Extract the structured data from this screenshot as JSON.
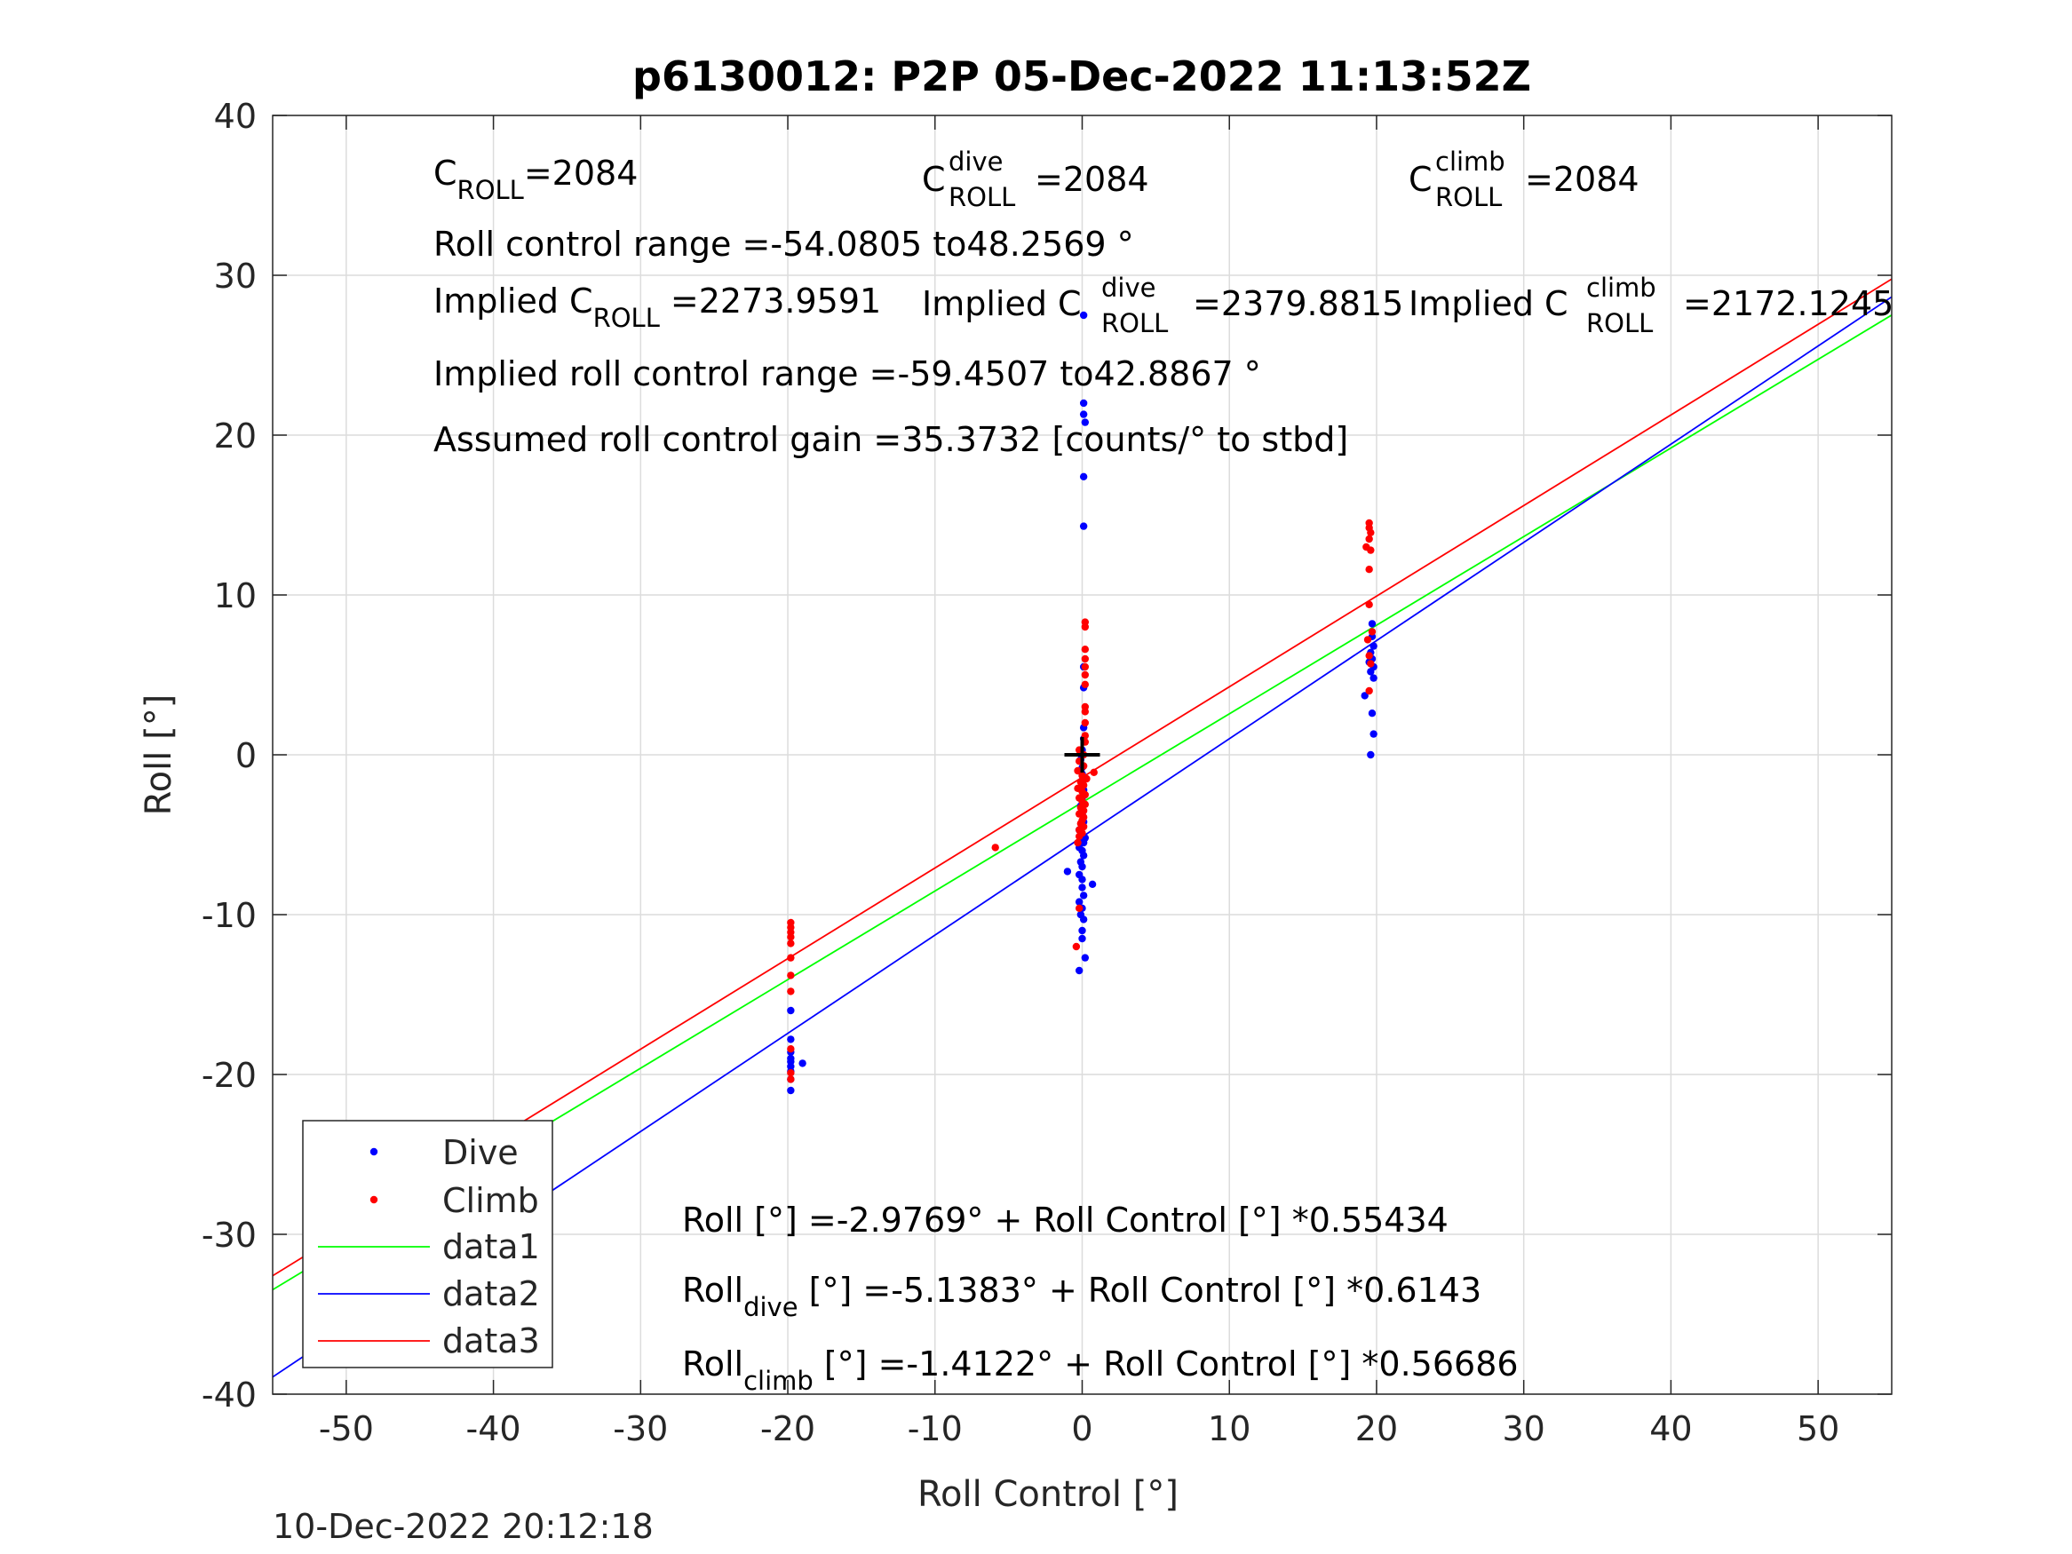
{
  "chart_data": {
    "type": "scatter",
    "title": "p6130012: P2P 05-Dec-2022 11:13:52Z",
    "xlabel": "Roll Control [°]",
    "ylabel": "Roll [°]",
    "xlim": [
      -55,
      55
    ],
    "ylim": [
      -40,
      40
    ],
    "xticks": [
      -50,
      -40,
      -30,
      -20,
      -10,
      0,
      10,
      20,
      30,
      40,
      50
    ],
    "yticks": [
      -40,
      -30,
      -20,
      -10,
      0,
      10,
      20,
      30,
      40
    ],
    "grid": true,
    "legend_position": "bottom-left",
    "timestamp": "10-Dec-2022 20:12:18",
    "annotations": {
      "c_roll": {
        "main": "C",
        "sub": "ROLL",
        "value": "=2084"
      },
      "c_roll_dive": {
        "main": "C",
        "sup": "dive",
        "sub": "ROLL",
        "value": "=2084"
      },
      "c_roll_climb": {
        "main": "C",
        "sup": "climb",
        "sub": "ROLL",
        "value": "=2084"
      },
      "range": "Roll control range =-54.0805 to48.2569 °",
      "implied": {
        "prefix": "Implied C",
        "sub": "ROLL",
        "value": "=2273.9591"
      },
      "implied_dive": {
        "prefix": "Implied C",
        "sup": "dive",
        "sub": "ROLL",
        "value": "=2379.8815"
      },
      "implied_climb": {
        "prefix": "Implied C",
        "sup": "climb",
        "sub": "ROLL",
        "value": "=2172.1245"
      },
      "implied_range": "Implied roll control range =-59.4507 to42.8867 °",
      "gain": "Assumed roll control gain =35.3732 [counts/° to stbd]",
      "fit_all": "Roll [°] =-2.9769° + Roll Control [°] *0.55434",
      "fit_dive": {
        "main": "Roll",
        "sub": "dive",
        "rest": " [°] =-5.1383° + Roll Control [°] *0.6143"
      },
      "fit_climb": {
        "main": "Roll",
        "sub": "climb",
        "rest": " [°] =-1.4122° + Roll Control [°] *0.56686"
      }
    },
    "series": [
      {
        "name": "Dive",
        "kind": "points",
        "color": "#0000ff",
        "points": [
          [
            -19.8,
            -21.0
          ],
          [
            -19.8,
            -20.3
          ],
          [
            -19.8,
            -19.8
          ],
          [
            -19.8,
            -19.5
          ],
          [
            -19.8,
            -19.2
          ],
          [
            -19.8,
            -19.0
          ],
          [
            -19.8,
            -18.6
          ],
          [
            -19.8,
            -17.8
          ],
          [
            -19.8,
            -16.0
          ],
          [
            -19.0,
            -19.3
          ],
          [
            0.1,
            27.5
          ],
          [
            0.1,
            22.0
          ],
          [
            0.1,
            21.3
          ],
          [
            0.2,
            20.8
          ],
          [
            0.1,
            17.4
          ],
          [
            0.1,
            14.3
          ],
          [
            0.1,
            5.5
          ],
          [
            0.1,
            4.2
          ],
          [
            0.1,
            1.7
          ],
          [
            0.1,
            1.0
          ],
          [
            0.0,
            0.3
          ],
          [
            -0.1,
            -0.3
          ],
          [
            0.0,
            -0.8
          ],
          [
            0.0,
            -1.2
          ],
          [
            0.0,
            -1.6
          ],
          [
            0.1,
            -2.2
          ],
          [
            0.0,
            -2.7
          ],
          [
            -0.1,
            -3.2
          ],
          [
            0.0,
            -3.7
          ],
          [
            0.1,
            -4.2
          ],
          [
            -0.2,
            -4.7
          ],
          [
            0.0,
            -5.2
          ],
          [
            0.1,
            -5.5
          ],
          [
            -0.2,
            -5.8
          ],
          [
            0.0,
            -6.0
          ],
          [
            0.1,
            -6.3
          ],
          [
            -0.1,
            -6.7
          ],
          [
            0.0,
            -7.0
          ],
          [
            -0.2,
            -7.5
          ],
          [
            0.0,
            -7.8
          ],
          [
            -1.0,
            -7.3
          ],
          [
            0.0,
            -8.3
          ],
          [
            0.1,
            -8.8
          ],
          [
            -0.2,
            -9.2
          ],
          [
            0.0,
            -9.6
          ],
          [
            -0.1,
            -10.0
          ],
          [
            0.1,
            -10.3
          ],
          [
            0.0,
            -11.0
          ],
          [
            0.0,
            -11.5
          ],
          [
            0.2,
            -12.7
          ],
          [
            -0.2,
            -13.5
          ],
          [
            0.7,
            -8.1
          ],
          [
            0.2,
            -5.2
          ],
          [
            19.7,
            8.2
          ],
          [
            19.7,
            7.4
          ],
          [
            19.8,
            6.8
          ],
          [
            19.6,
            6.4
          ],
          [
            19.7,
            6.0
          ],
          [
            19.5,
            5.8
          ],
          [
            19.8,
            5.5
          ],
          [
            19.6,
            5.2
          ],
          [
            19.8,
            4.8
          ],
          [
            19.2,
            3.7
          ],
          [
            19.7,
            2.6
          ],
          [
            19.8,
            1.3
          ],
          [
            19.6,
            0.0
          ]
        ]
      },
      {
        "name": "Climb",
        "kind": "points",
        "color": "#ff0000",
        "points": [
          [
            -19.8,
            -10.5
          ],
          [
            -19.8,
            -10.8
          ],
          [
            -19.8,
            -11.1
          ],
          [
            -19.8,
            -11.4
          ],
          [
            -19.8,
            -11.8
          ],
          [
            -19.8,
            -12.7
          ],
          [
            -19.8,
            -13.8
          ],
          [
            -19.8,
            -14.8
          ],
          [
            -19.8,
            -18.4
          ],
          [
            -19.8,
            -19.9
          ],
          [
            -19.8,
            -20.3
          ],
          [
            -5.9,
            -5.8
          ],
          [
            0.2,
            8.3
          ],
          [
            0.2,
            8.0
          ],
          [
            0.2,
            6.6
          ],
          [
            0.2,
            6.0
          ],
          [
            0.2,
            5.5
          ],
          [
            0.2,
            5.0
          ],
          [
            0.2,
            4.4
          ],
          [
            0.2,
            3.0
          ],
          [
            0.2,
            2.7
          ],
          [
            0.2,
            2.0
          ],
          [
            0.2,
            1.2
          ],
          [
            0.2,
            0.8
          ],
          [
            -0.2,
            0.3
          ],
          [
            0.1,
            0.0
          ],
          [
            -0.2,
            -0.4
          ],
          [
            0.1,
            -0.7
          ],
          [
            -0.3,
            -1.0
          ],
          [
            0.0,
            -1.3
          ],
          [
            0.3,
            -1.5
          ],
          [
            -0.1,
            -1.7
          ],
          [
            0.1,
            -1.9
          ],
          [
            -0.3,
            -2.1
          ],
          [
            0.0,
            -2.3
          ],
          [
            0.2,
            -2.5
          ],
          [
            -0.2,
            -2.7
          ],
          [
            0.0,
            -2.9
          ],
          [
            0.2,
            -3.1
          ],
          [
            -0.1,
            -3.3
          ],
          [
            0.1,
            -3.5
          ],
          [
            -0.2,
            -3.7
          ],
          [
            0.1,
            -3.9
          ],
          [
            0.0,
            -4.1
          ],
          [
            -0.1,
            -4.3
          ],
          [
            0.1,
            -4.5
          ],
          [
            -0.2,
            -4.7
          ],
          [
            0.0,
            -4.9
          ],
          [
            -0.2,
            -5.1
          ],
          [
            -0.3,
            -5.5
          ],
          [
            0.8,
            -1.1
          ],
          [
            -0.2,
            -9.6
          ],
          [
            -0.4,
            -12.0
          ],
          [
            19.5,
            14.5
          ],
          [
            19.5,
            14.2
          ],
          [
            19.6,
            13.9
          ],
          [
            19.5,
            13.5
          ],
          [
            19.3,
            13.0
          ],
          [
            19.6,
            12.8
          ],
          [
            19.5,
            11.6
          ],
          [
            19.5,
            9.4
          ],
          [
            19.7,
            7.7
          ],
          [
            19.4,
            7.2
          ],
          [
            19.5,
            6.2
          ],
          [
            19.6,
            5.7
          ],
          [
            19.5,
            4.0
          ]
        ]
      },
      {
        "name": "data1",
        "kind": "line",
        "color": "#00ff00",
        "x": [
          -55,
          55
        ],
        "y": [
          -33.466,
          27.51
        ]
      },
      {
        "name": "data2",
        "kind": "line",
        "color": "#0000ff",
        "x": [
          -55,
          55
        ],
        "y": [
          -38.925,
          28.648
        ]
      },
      {
        "name": "data3",
        "kind": "line",
        "color": "#ff0000",
        "x": [
          -55,
          55
        ],
        "y": [
          -32.59,
          29.765
        ]
      }
    ],
    "markers": [
      {
        "name": "origin-marker",
        "x": 0,
        "y": 0,
        "color": "#000000"
      }
    ]
  }
}
